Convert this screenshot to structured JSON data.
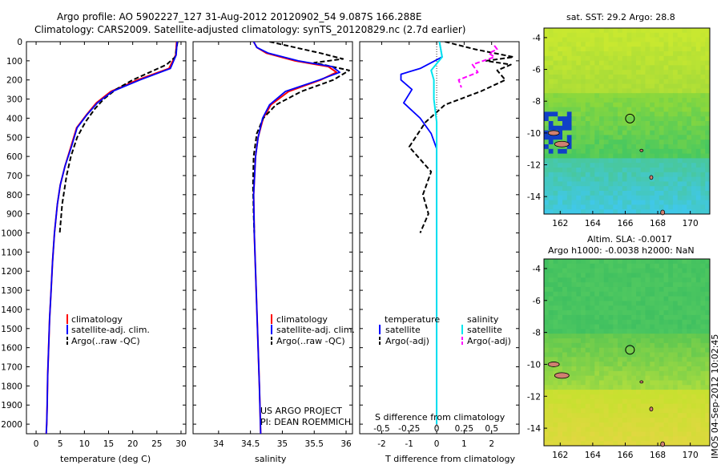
{
  "title_line1": "Argo profile: AO 5902227_127 31-Aug-2012 20120902_54 9.087S 166.288E",
  "title_line2": "Climatology: CARS2009. Satellite-adjusted climatology: synTS_20120829.nc (2.7d earlier)",
  "footer_stamp": "IMOS 04-Sep-2012 10:02:45",
  "credit_line1": "US ARGO PROJECT",
  "credit_line2": "PI: DEAN ROEMMICH",
  "colors": {
    "climatology": "#ff0000",
    "satellite": "#0000ff",
    "argo": "#000000",
    "salinity_satellite": "#00e5ee",
    "salinity_argo": "#ff00ff"
  },
  "chart_data": [
    {
      "type": "line",
      "panel": "temperature",
      "xlabel": "temperature (deg C)",
      "xlim": [
        -2,
        31
      ],
      "xticks": [
        "0",
        "5",
        "10",
        "15",
        "20",
        "25",
        "30"
      ],
      "ylim": [
        2050,
        0
      ],
      "yticks": [
        "0",
        "100",
        "200",
        "300",
        "400",
        "500",
        "600",
        "700",
        "800",
        "900",
        "1000",
        "1100",
        "1200",
        "1300",
        "1400",
        "1500",
        "1600",
        "1700",
        "1800",
        "1900",
        "2000"
      ],
      "legend": [
        "climatology",
        "satellite-adj. clim.",
        "Argo(..raw -QC)"
      ],
      "series": [
        {
          "name": "climatology",
          "x": [
            29.1,
            28.9,
            27.5,
            21,
            15.5,
            12.5,
            10.5,
            8.4,
            7.2,
            6,
            5,
            4.4,
            3.8,
            3.4,
            3.1,
            2.8,
            2.6,
            2.4,
            2.3,
            2.2,
            2.1
          ],
          "y": [
            0,
            70,
            140,
            200,
            260,
            320,
            380,
            450,
            550,
            650,
            750,
            850,
            1000,
            1150,
            1300,
            1450,
            1600,
            1750,
            1900,
            2000,
            2050
          ]
        },
        {
          "name": "satellite-adj. clim.",
          "x": [
            29.2,
            29,
            27.8,
            21.5,
            15.8,
            12.7,
            10.6,
            8.5,
            7.3,
            6,
            5,
            4.4,
            3.8,
            3.4,
            3.1,
            2.8,
            2.6,
            2.4,
            2.3,
            2.2,
            2.1
          ],
          "y": [
            0,
            70,
            140,
            200,
            260,
            320,
            380,
            450,
            550,
            650,
            750,
            850,
            1000,
            1150,
            1300,
            1450,
            1600,
            1750,
            1900,
            2000,
            2050
          ]
        },
        {
          "name": "Argo(..raw -QC)",
          "x": [
            29.3,
            29.1,
            28.8,
            27,
            23.5,
            20,
            16.5,
            14,
            12.2,
            10.2,
            8.5,
            7.2,
            6.3,
            5.4,
            4.9
          ],
          "y": [
            0,
            30,
            80,
            120,
            160,
            200,
            250,
            300,
            350,
            420,
            500,
            600,
            700,
            850,
            1000
          ]
        }
      ]
    },
    {
      "type": "line",
      "panel": "salinity",
      "xlabel": "salinity",
      "xlim": [
        33.6,
        36.1
      ],
      "xticks": [
        "34",
        "34.5",
        "35",
        "35.5",
        "36"
      ],
      "ylim": [
        2050,
        0
      ],
      "legend": [
        "climatology",
        "satellite-adj. clim.",
        "Argo(..raw -QC)"
      ],
      "series": [
        {
          "name": "climatology",
          "x": [
            34.55,
            34.6,
            34.75,
            35.2,
            35.72,
            35.85,
            35.6,
            35.1,
            34.82,
            34.7,
            34.62,
            34.58,
            34.55,
            34.56,
            34.58,
            34.6,
            34.62,
            34.64,
            34.66
          ],
          "y": [
            0,
            30,
            60,
            100,
            130,
            160,
            200,
            260,
            330,
            400,
            500,
            600,
            800,
            1000,
            1200,
            1400,
            1600,
            1800,
            2050
          ]
        },
        {
          "name": "satellite-adj. clim.",
          "x": [
            34.55,
            34.6,
            34.78,
            35.25,
            35.78,
            35.9,
            35.58,
            35.05,
            34.8,
            34.69,
            34.62,
            34.58,
            34.55,
            34.56,
            34.58,
            34.6,
            34.62,
            34.64,
            34.66
          ],
          "y": [
            0,
            30,
            60,
            100,
            130,
            160,
            200,
            260,
            330,
            400,
            500,
            600,
            800,
            1000,
            1200,
            1400,
            1600,
            1800,
            2050
          ]
        },
        {
          "name": "Argo(..raw -QC)",
          "x": [
            34.8,
            35.2,
            35.6,
            35.95,
            35.5,
            36.05,
            35.8,
            35.3,
            34.9,
            34.7,
            34.6,
            34.55,
            34.54,
            34.55,
            34.56
          ],
          "y": [
            0,
            30,
            60,
            90,
            110,
            150,
            200,
            260,
            330,
            400,
            480,
            600,
            750,
            900,
            1000
          ]
        }
      ]
    },
    {
      "type": "line",
      "panel": "difference",
      "xlabel": "T difference from climatology",
      "xlabel_top": "S difference from climatology",
      "xlim": [
        -2.8,
        3
      ],
      "xticks": [
        "-2",
        "-1",
        "0",
        "1",
        "2"
      ],
      "xticks_top": [
        "-0.5",
        "-0.25",
        "0",
        "0.25",
        "0.5"
      ],
      "ylim": [
        2050,
        0
      ],
      "legend_headers": [
        "temperature",
        "salinity"
      ],
      "legend": [
        "satellite",
        "Argo(-adj)",
        "satellite",
        "Argo(-adj)"
      ],
      "series": [
        {
          "name": "temperature satellite",
          "x": [
            0.1,
            0.2,
            -0.6,
            -1.3,
            -1.3,
            -0.9,
            -1.2,
            -0.6,
            -0.2,
            0,
            0,
            0,
            0,
            0
          ],
          "y": [
            0,
            80,
            140,
            170,
            200,
            250,
            320,
            400,
            480,
            560,
            800,
            1200,
            1600,
            2000
          ]
        },
        {
          "name": "temperature Argo(-adj)",
          "x": [
            0.3,
            1.4,
            2.8,
            1.8,
            2.7,
            2.2,
            2.5,
            1.6,
            0.3,
            -0.4,
            -1,
            -0.2,
            -0.5,
            -0.3,
            -0.6
          ],
          "y": [
            0,
            40,
            80,
            100,
            120,
            150,
            200,
            260,
            330,
            420,
            550,
            680,
            800,
            900,
            1000
          ]
        },
        {
          "name": "salinity satellite",
          "x": [
            0.1,
            0.2,
            -0.2,
            -0.1,
            -0.1,
            0,
            0,
            0,
            0,
            0
          ],
          "y": [
            0,
            80,
            150,
            200,
            300,
            420,
            600,
            1000,
            1500,
            2000
          ]
        },
        {
          "name": "salinity Argo(-adj)",
          "x": [
            2.1,
            2.2,
            1.9,
            2.1,
            1.3,
            1.5,
            0.8,
            0.9
          ],
          "y": [
            20,
            40,
            60,
            80,
            120,
            160,
            200,
            240
          ]
        }
      ]
    },
    {
      "type": "heatmap",
      "panel": "sst_map",
      "title": "sat. SST: 29.2 Argo: 28.8",
      "xticks": [
        "162",
        "164",
        "166",
        "168",
        "170"
      ],
      "yticks": [
        "-4",
        "-6",
        "-8",
        "-10",
        "-12",
        "-14"
      ],
      "marker": {
        "lon": 166.29,
        "lat": -9.09
      }
    },
    {
      "type": "heatmap",
      "panel": "sla_map",
      "title": "Altim. SLA: -0.0017",
      "subtitle": "Argo h1000: -0.0038 h2000: NaN",
      "xticks": [
        "162",
        "164",
        "166",
        "168",
        "170"
      ],
      "yticks": [
        "-4",
        "-6",
        "-8",
        "-10",
        "-12",
        "-14"
      ],
      "marker": {
        "lon": 166.29,
        "lat": -9.09
      }
    }
  ]
}
